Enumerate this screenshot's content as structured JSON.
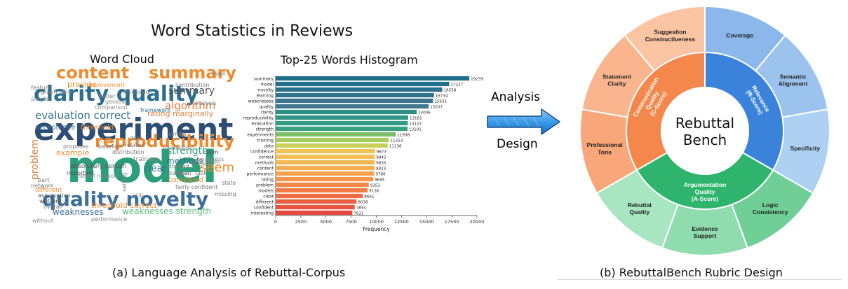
{
  "main_title": "Word Statistics in Reviews",
  "word_cloud": {
    "title": "Word Cloud",
    "words": [
      {
        "text": "experiment",
        "color": "#2d4e74"
      },
      {
        "text": "model",
        "color": "#2a9d7a"
      },
      {
        "text": "clarity quality",
        "color": "#2d6e8e"
      },
      {
        "text": "quality novelty",
        "color": "#3e6f9b"
      },
      {
        "text": "content",
        "color": "#ef8a2e"
      },
      {
        "text": "summary",
        "color": "#ef8a2e"
      },
      {
        "text": "reproducibility",
        "color": "#ef8a2e"
      },
      {
        "text": "evaluation correct",
        "color": "#2f6f8f"
      },
      {
        "text": "algorithm",
        "color": "#e07b39"
      },
      {
        "text": "strength",
        "color": "#3aa17e"
      },
      {
        "text": "weaknesses",
        "color": "#3e6f9b"
      },
      {
        "text": "weaknesses strength",
        "color": "#5bbf7a"
      },
      {
        "text": "acceptance",
        "color": "#3e6f9b"
      },
      {
        "text": "threshold",
        "color": "#ef8a2e"
      },
      {
        "text": "rating marginally",
        "color": "#e07b39"
      },
      {
        "text": "summary",
        "color": "#555555"
      },
      {
        "text": "example",
        "color": "#ef8a2e"
      },
      {
        "text": "seem",
        "color": "#ef8a2e"
      },
      {
        "text": "methods",
        "color": "#2f6f8f"
      },
      {
        "text": "clear",
        "color": "#2f6f8f"
      },
      {
        "text": "problem",
        "color": "#e07b39"
      },
      {
        "text": "novelty",
        "color": "#3aa17e"
      },
      {
        "text": "training",
        "color": "#888888"
      },
      {
        "text": "interesting",
        "color": "#888888"
      },
      {
        "text": "compared",
        "color": "#ef8a2e"
      },
      {
        "text": "provide",
        "color": "#ef8a2e"
      },
      {
        "text": "graph",
        "color": "#777777"
      },
      {
        "text": "feature",
        "color": "#777777"
      },
      {
        "text": "simple",
        "color": "#888888"
      },
      {
        "text": "idea",
        "color": "#999999"
      },
      {
        "text": "improvement",
        "color": "#ef8a2e"
      },
      {
        "text": "discussion",
        "color": "#777777"
      },
      {
        "text": "framework",
        "color": "#2f6f8f"
      },
      {
        "text": "analysis",
        "color": "#777777"
      },
      {
        "text": "proposes",
        "color": "#777777"
      },
      {
        "text": "baseline",
        "color": "#777777"
      },
      {
        "text": "distribution",
        "color": "#777777"
      },
      {
        "text": "absolutely certain",
        "color": "#555555"
      },
      {
        "text": "important",
        "color": "#555555"
      },
      {
        "text": "neural network",
        "color": "#888888"
      },
      {
        "text": "network",
        "color": "#777777"
      },
      {
        "text": "part",
        "color": "#777777"
      },
      {
        "text": "assumption",
        "color": "#555555"
      },
      {
        "text": "written",
        "color": "#555555"
      },
      {
        "text": "overall",
        "color": "#777777"
      },
      {
        "text": "different",
        "color": "#ef8a2e"
      },
      {
        "text": "performance",
        "color": "#888888"
      },
      {
        "text": "setting",
        "color": "#888888"
      },
      {
        "text": "threshold correct",
        "color": "#ef8a2e"
      },
      {
        "text": "evaluation",
        "color": "#888888"
      },
      {
        "text": "dataset",
        "color": "#888888"
      },
      {
        "text": "claim",
        "color": "#555555"
      },
      {
        "text": "weakness",
        "color": "#888888"
      },
      {
        "text": "missing",
        "color": "#777777"
      },
      {
        "text": "state",
        "color": "#777777"
      },
      {
        "text": "data",
        "color": "#777777"
      },
      {
        "text": "related",
        "color": "#777777"
      },
      {
        "text": "main",
        "color": "#777777"
      },
      {
        "text": "image",
        "color": "#777777"
      },
      {
        "text": "code",
        "color": "#777777"
      },
      {
        "text": "contribution",
        "color": "#777777"
      },
      {
        "text": "fairly confident",
        "color": "#777777"
      },
      {
        "text": "detail",
        "color": "#777777"
      },
      {
        "text": "task",
        "color": "#777777"
      },
      {
        "text": "still",
        "color": "#888888"
      },
      {
        "text": "without",
        "color": "#888888"
      },
      {
        "text": "instead",
        "color": "#777777"
      },
      {
        "text": "similar",
        "color": "#888888"
      },
      {
        "text": "general",
        "color": "#888888"
      },
      {
        "text": "better",
        "color": "#888888"
      },
      {
        "text": "comparison",
        "color": "#888888"
      }
    ]
  },
  "chart_data": {
    "type": "bar",
    "orientation": "horizontal",
    "title": "Top-25 Words Histogram",
    "xlabel": "Frequency",
    "ylabel": "",
    "xlim": [
      0,
      20000
    ],
    "xticks": [
      0,
      2500,
      5000,
      7500,
      10000,
      12500,
      15000,
      17500,
      20000
    ],
    "categories": [
      "summary",
      "model",
      "novelty",
      "learning",
      "weaknesses",
      "quality",
      "clarity",
      "reproducibility",
      "evaluation",
      "strength",
      "experiments",
      "training",
      "data",
      "confidence",
      "correct",
      "methods",
      "content",
      "performance",
      "rating",
      "problem",
      "models",
      "clear",
      "different",
      "confident",
      "interesting"
    ],
    "values": [
      19239,
      17237,
      16558,
      15734,
      15631,
      15207,
      14006,
      13161,
      13127,
      13101,
      11938,
      11253,
      11136,
      9873,
      9842,
      9835,
      9823,
      9786,
      9695,
      9252,
      9136,
      8661,
      8038,
      7854,
      7621
    ],
    "colors": [
      "#1f6f8b",
      "#24708c",
      "#2a718d",
      "#32728e",
      "#3a748f",
      "#437690",
      "#2c8f88",
      "#2f9686",
      "#349c84",
      "#3aa180",
      "#7bbe6a",
      "#a9cc5e",
      "#c9d15a",
      "#f1c45a",
      "#f4be57",
      "#f5b654",
      "#f6ad51",
      "#f6a24e",
      "#f6964b",
      "#f48847",
      "#f27a44",
      "#ef6c42",
      "#ec5f40",
      "#e9533f",
      "#e6473e"
    ]
  },
  "arrow": {
    "top_label": "Analysis",
    "bottom_label": "Design"
  },
  "sunburst": {
    "center_line1": "Rebuttal",
    "center_line2": "Bench",
    "inner_ring": [
      {
        "line1": "Relevance",
        "line2": "(R-Score)",
        "color": "#3b82db"
      },
      {
        "line1": "Argumentation",
        "line2": "Quality",
        "line3": "(A-Score)",
        "color": "#2fb46d"
      },
      {
        "line1": "Communication",
        "line2": "Quality",
        "line3": "(C-Score)",
        "color": "#f4874b"
      }
    ],
    "outer_ring": [
      {
        "line1": "Coverage",
        "color": "#8bb7ea"
      },
      {
        "line1": "Semantic",
        "line2": "Alignment",
        "color": "#9cc2ee"
      },
      {
        "line1": "Specificity",
        "color": "#add0f3"
      },
      {
        "line1": "Logic",
        "line2": "Consistency",
        "color": "#6fcf96"
      },
      {
        "line1": "Evidence",
        "line2": "Support",
        "color": "#8fdcae"
      },
      {
        "line1": "Rebuttal",
        "line2": "Quality",
        "color": "#a8e6c2"
      },
      {
        "line1": "Professional",
        "line2": "Tone",
        "color": "#f9a67a"
      },
      {
        "line1": "Statement",
        "line2": "Clarity",
        "color": "#fab58e"
      },
      {
        "line1": "Suggestion",
        "line2": "Constructiveness",
        "color": "#fbc4a2"
      }
    ]
  },
  "captions": {
    "a": "(a) Language Analysis of Rebuttal-Corpus",
    "b": "(b) RebuttalBench Rubric Design"
  }
}
